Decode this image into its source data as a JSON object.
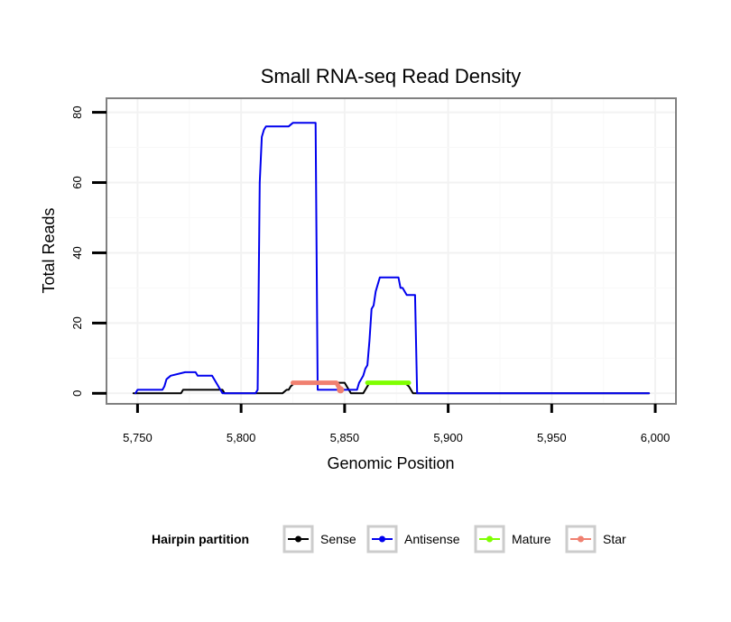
{
  "chart_data": {
    "type": "line",
    "title": "Small RNA-seq Read Density",
    "xlabel": "Genomic Position",
    "ylabel": "Total Reads",
    "xlim": [
      5735,
      6010
    ],
    "ylim": [
      -3,
      84
    ],
    "x_ticks": [
      5750,
      5800,
      5850,
      5900,
      5950,
      6000
    ],
    "x_tick_labels": [
      "5,750",
      "5,800",
      "5,850",
      "5,900",
      "5,950",
      "6,000"
    ],
    "y_ticks": [
      0,
      20,
      40,
      60,
      80
    ],
    "y_tick_labels": [
      "0",
      "20",
      "40",
      "60",
      "80"
    ],
    "grid": true,
    "legend": {
      "title": "Hairpin partition",
      "position": "bottom",
      "entries": [
        "Sense",
        "Antisense",
        "Mature",
        "Star"
      ]
    },
    "series": [
      {
        "name": "Sense",
        "color": "#000000",
        "x": [
          5748,
          5771,
          5772,
          5791,
          5792,
          5820,
          5822,
          5823,
          5824,
          5826,
          5850,
          5853,
          5856,
          5859,
          5862,
          5879,
          5881,
          5883,
          5884,
          5997
        ],
        "y": [
          0,
          0,
          1,
          1,
          0,
          0,
          1,
          1,
          2,
          3,
          3,
          0,
          0,
          0,
          3,
          3,
          2,
          0,
          0,
          0
        ]
      },
      {
        "name": "Antisense",
        "color": "#0000ee",
        "x": [
          5749,
          5750,
          5762,
          5763,
          5764,
          5766,
          5773,
          5774,
          5778,
          5779,
          5783,
          5784,
          5786,
          5791,
          5792,
          5807,
          5808,
          5809,
          5810,
          5811,
          5812,
          5813,
          5818,
          5823,
          5825,
          5831,
          5836,
          5837,
          5856,
          5857,
          5858,
          5859,
          5860,
          5861,
          5862,
          5863,
          5864,
          5865,
          5866,
          5867,
          5870,
          5876,
          5877,
          5878,
          5880,
          5881,
          5884,
          5885,
          5886,
          5997
        ],
        "y": [
          0,
          1,
          1,
          2,
          4,
          5,
          6,
          6,
          6,
          5,
          5,
          5,
          5,
          0,
          0,
          0,
          1,
          60,
          73,
          75,
          76,
          76,
          76,
          76,
          77,
          77,
          77,
          1,
          1,
          3,
          4,
          5,
          7,
          8,
          15,
          24,
          25,
          29,
          31,
          33,
          33,
          33,
          30,
          30,
          28,
          28,
          28,
          0,
          0,
          0
        ]
      },
      {
        "name": "Mature",
        "color": "#7fff00",
        "x": [
          5861,
          5881
        ],
        "y": [
          3,
          3
        ]
      },
      {
        "name": "Star",
        "color": "#f08070",
        "x": [
          5825,
          5846,
          5848
        ],
        "y": [
          3,
          3,
          1
        ]
      }
    ]
  }
}
